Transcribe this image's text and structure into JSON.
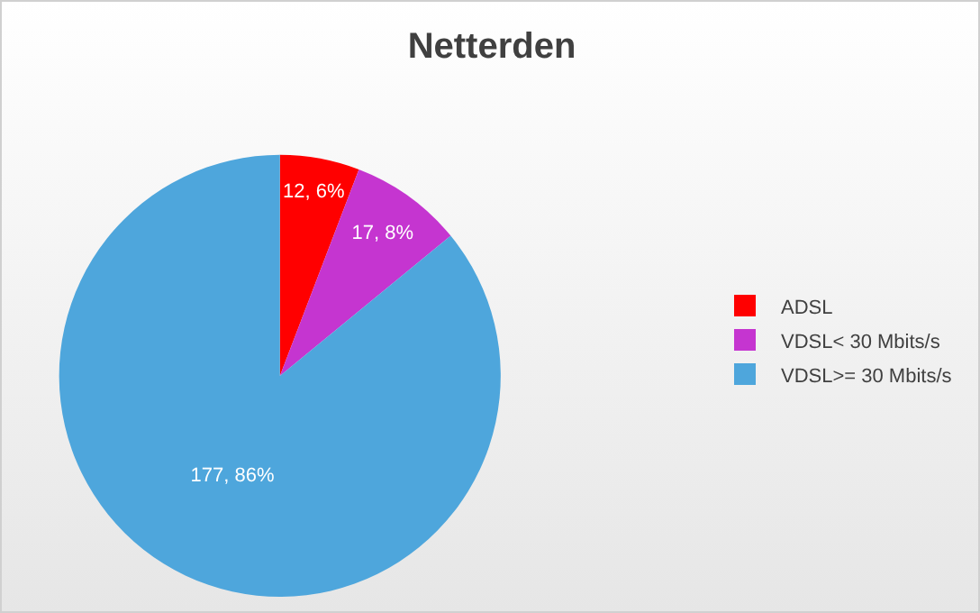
{
  "chart_data": {
    "type": "pie",
    "title": "Netterden",
    "categories": [
      "ADSL",
      "VDSL< 30 Mbits/s",
      "VDSL>= 30 Mbits/s"
    ],
    "values": [
      12,
      17,
      177
    ],
    "colors": [
      "#ff0000",
      "#c535d0",
      "#4ea6dc"
    ],
    "value_labels": [
      "12, 6%",
      "17, 8%",
      "177, 86%"
    ],
    "legend": "right"
  }
}
